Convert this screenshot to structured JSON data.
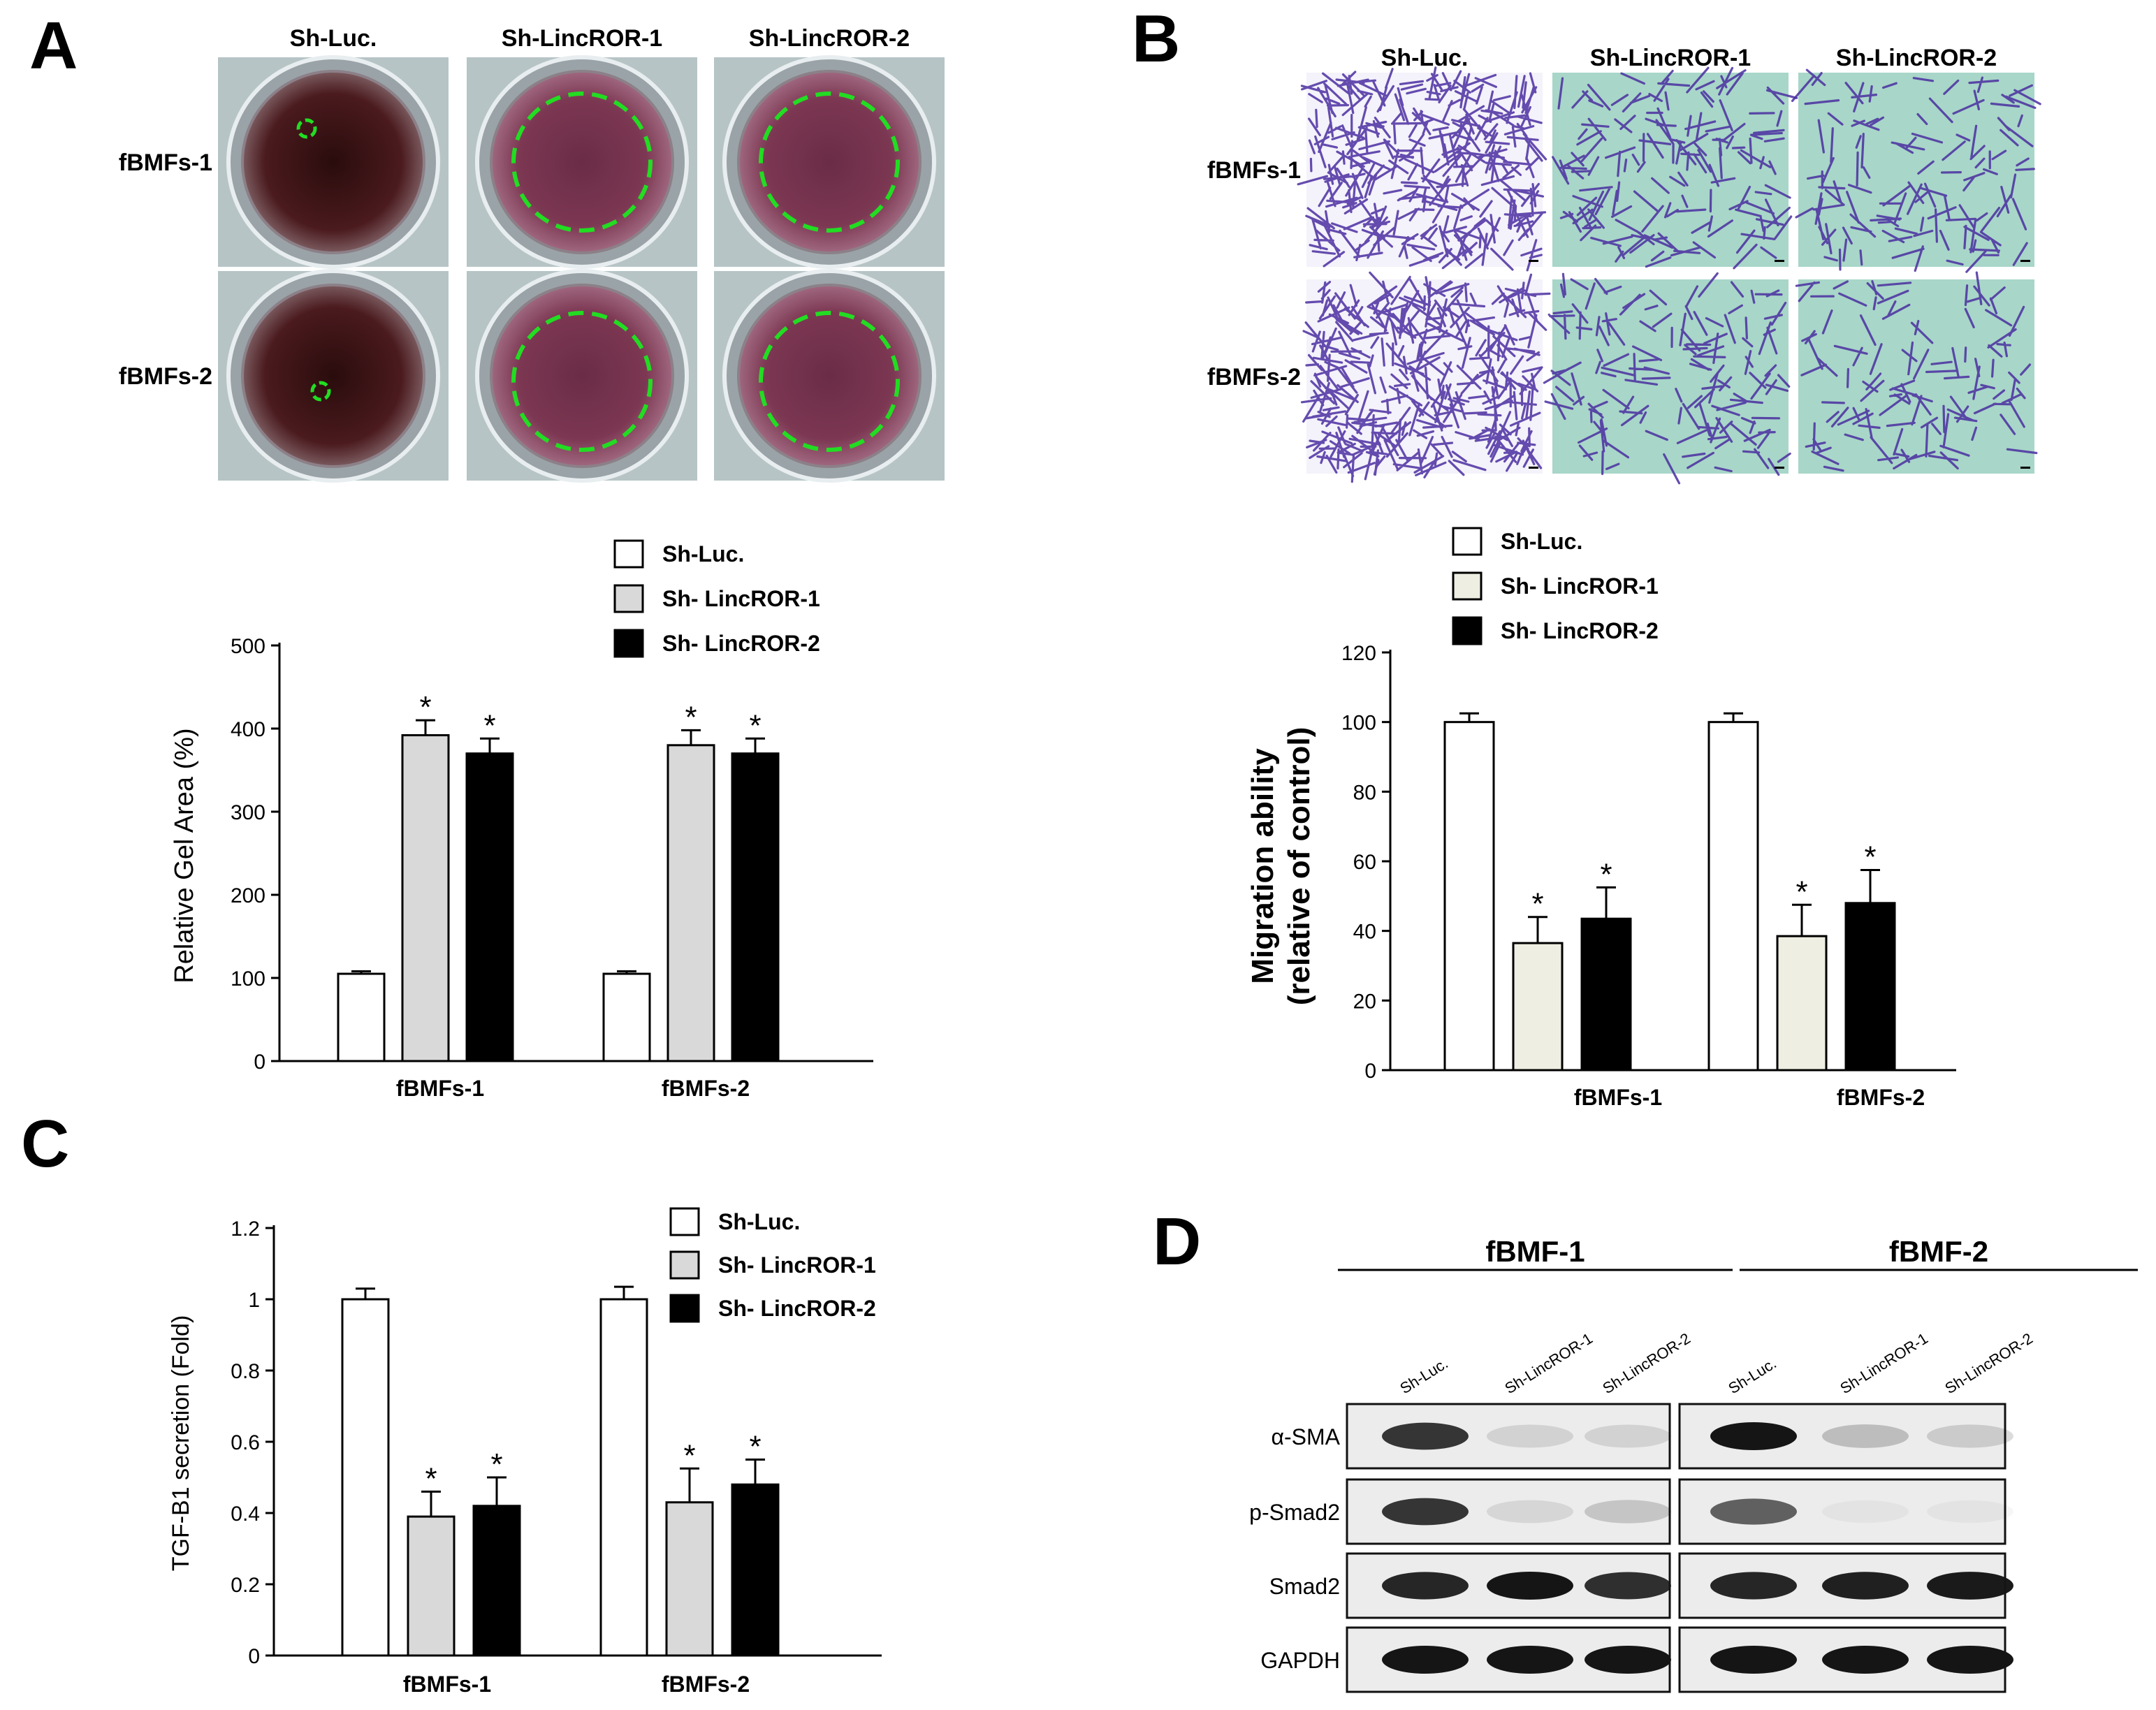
{
  "panels": {
    "A": "A",
    "B": "B",
    "C": "C",
    "D": "D"
  },
  "photos_A": {
    "cols": [
      "Sh-Luc.",
      "Sh-LincROR-1",
      "Sh-LincROR-2"
    ],
    "rows": [
      "fBMFs-1",
      "fBMFs-2"
    ]
  },
  "photos_B": {
    "cols": [
      "Sh-Luc.",
      "Sh-LincROR-1",
      "Sh-LincROR-2"
    ],
    "rows": [
      "fBMFs-1",
      "fBMFs-2"
    ]
  },
  "colors": {
    "sh_luc": "#ffffff",
    "sh_lincror_1": "#d9d9d9",
    "sh_lincror_1_B": "#eeeee2",
    "sh_lincror_2": "#000000",
    "gel_dash": "#22dd22",
    "well_rim": "#8a7a84",
    "well_dark": "#2a0c0c",
    "well_pink": "#7c3752",
    "stain": "#4a2ea0",
    "membrane": "#a8d6c8"
  },
  "chart_data": [
    {
      "panel": "A",
      "type": "bar",
      "categories": [
        "fBMFs-1",
        "fBMFs-2"
      ],
      "series": [
        {
          "name": "Sh-Luc.",
          "values": [
            105,
            105
          ],
          "errors": [
            3,
            3
          ],
          "sig": [
            false,
            false
          ]
        },
        {
          "name": "Sh- LincROR-1",
          "values": [
            392,
            380
          ],
          "errors": [
            18,
            18
          ],
          "sig": [
            true,
            true
          ]
        },
        {
          "name": "Sh- LincROR-2",
          "values": [
            370,
            370
          ],
          "errors": [
            18,
            18
          ],
          "sig": [
            true,
            true
          ]
        }
      ],
      "xlabel": "",
      "ylabel": "Relative Gel Area (%)",
      "ylim": [
        0,
        500
      ],
      "yticks": [
        "0",
        "100",
        "200",
        "300",
        "400",
        "500"
      ],
      "legend": "top-right",
      "annotation": "*"
    },
    {
      "panel": "B",
      "type": "bar",
      "categories": [
        "fBMFs-1",
        "fBMFs-2"
      ],
      "series": [
        {
          "name": "Sh-Luc.",
          "values": [
            100,
            100
          ],
          "errors": [
            2.5,
            2.5
          ],
          "sig": [
            false,
            false
          ]
        },
        {
          "name": "Sh- LincROR-1",
          "values": [
            36.5,
            38.5
          ],
          "errors": [
            7.5,
            9
          ],
          "sig": [
            true,
            true
          ]
        },
        {
          "name": "Sh- LincROR-2",
          "values": [
            43.5,
            48
          ],
          "errors": [
            9,
            9.5
          ],
          "sig": [
            true,
            true
          ]
        }
      ],
      "xlabel": "",
      "ylabel_line1": "Migration ability",
      "ylabel_line2": "(relative of control)",
      "ylim": [
        0,
        120
      ],
      "yticks": [
        "0",
        "20",
        "40",
        "60",
        "80",
        "100",
        "120"
      ],
      "legend": "top-left",
      "annotation": "*"
    },
    {
      "panel": "C",
      "type": "bar",
      "categories": [
        "fBMFs-1",
        "fBMFs-2"
      ],
      "series": [
        {
          "name": "Sh-Luc.",
          "values": [
            1.0,
            1.0
          ],
          "errors": [
            0.03,
            0.035
          ],
          "sig": [
            false,
            false
          ]
        },
        {
          "name": "Sh- LincROR-1",
          "values": [
            0.39,
            0.43
          ],
          "errors": [
            0.07,
            0.095
          ],
          "sig": [
            true,
            true
          ]
        },
        {
          "name": "Sh- LincROR-2",
          "values": [
            0.42,
            0.48
          ],
          "errors": [
            0.08,
            0.07
          ],
          "sig": [
            true,
            true
          ]
        }
      ],
      "xlabel": "",
      "ylabel": "TGF-B1  secretion (Fold)",
      "ylim": [
        0,
        1.2
      ],
      "yticks": [
        "0",
        "0.2",
        "0.4",
        "0.6",
        "0.8",
        "1",
        "1.2"
      ],
      "legend": "top-right",
      "annotation": "*"
    }
  ],
  "blot_D": {
    "groups": [
      "fBMF-1",
      "fBMF-2"
    ],
    "lanes": [
      "Sh-Luc.",
      "Sh-LincROR-1",
      "Sh-LincROR-2"
    ],
    "proteins": [
      "α-SMA",
      "p-Smad2",
      "Smad2",
      "GAPDH"
    ],
    "intensity": [
      [
        0.85,
        0.12,
        0.12,
        1.0,
        0.22,
        0.15
      ],
      [
        0.85,
        0.1,
        0.18,
        0.65,
        0.04,
        0.04
      ],
      [
        0.92,
        1.0,
        0.88,
        0.92,
        0.95,
        0.98
      ],
      [
        1.0,
        1.0,
        1.0,
        1.0,
        1.0,
        1.0
      ]
    ]
  }
}
